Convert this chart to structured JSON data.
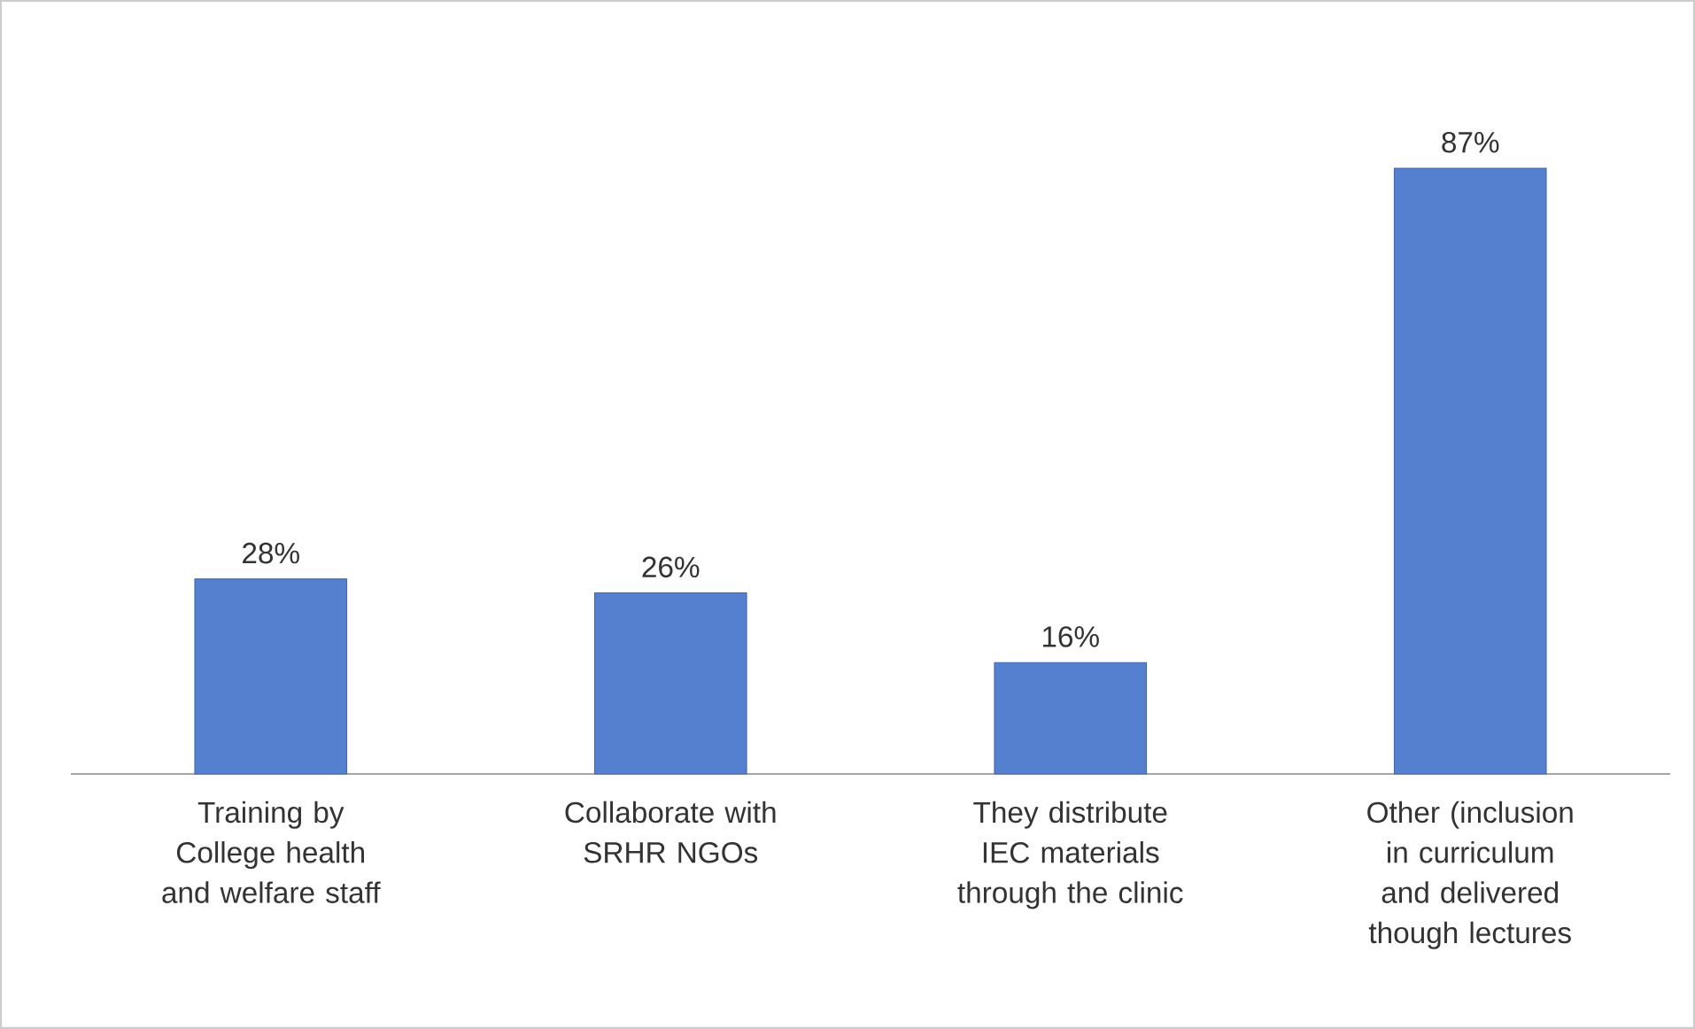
{
  "chart_data": {
    "type": "bar",
    "categories": [
      "Training by College health and welfare staff",
      "Collaborate with SRHR NGOs",
      "They distribute IEC materials through the clinic",
      "Other (inclusion in curriculum and delivered though lectures"
    ],
    "values": [
      28,
      26,
      16,
      87
    ],
    "value_labels": [
      "28%",
      "26%",
      "16%",
      "87%"
    ],
    "color": "#5580d0"
  }
}
